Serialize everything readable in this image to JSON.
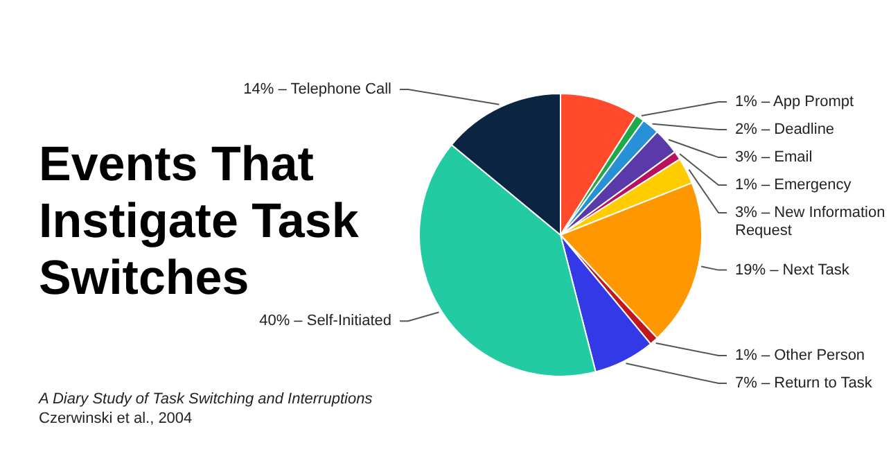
{
  "chart_data": {
    "type": "pie",
    "title": "Events That Instigate Task Switches",
    "categories": [
      null,
      "1% – App Prompt",
      "2% – Deadline",
      "3% – Email",
      "1% – Emergency",
      "3% – New Information Request",
      "19% – Next Task",
      "1% – Other Person",
      "7% – Return to Task",
      "40% – Self-Initiated",
      "14% – Telephone Call"
    ],
    "values": [
      9,
      1,
      2,
      3,
      1,
      3,
      19,
      1,
      7,
      40,
      14
    ],
    "colors": [
      "#ff4a2c",
      "#1faa4a",
      "#2790d6",
      "#5a3aa8",
      "#b8125e",
      "#ffcc00",
      "#ff9800",
      "#c0161e",
      "#3339e6",
      "#22cba2",
      "#0b2442"
    ],
    "annotations": [
      "A Diary Study of Task Switching and Interruptions",
      "Czerwinski et al., 2004"
    ],
    "legend": false
  }
}
